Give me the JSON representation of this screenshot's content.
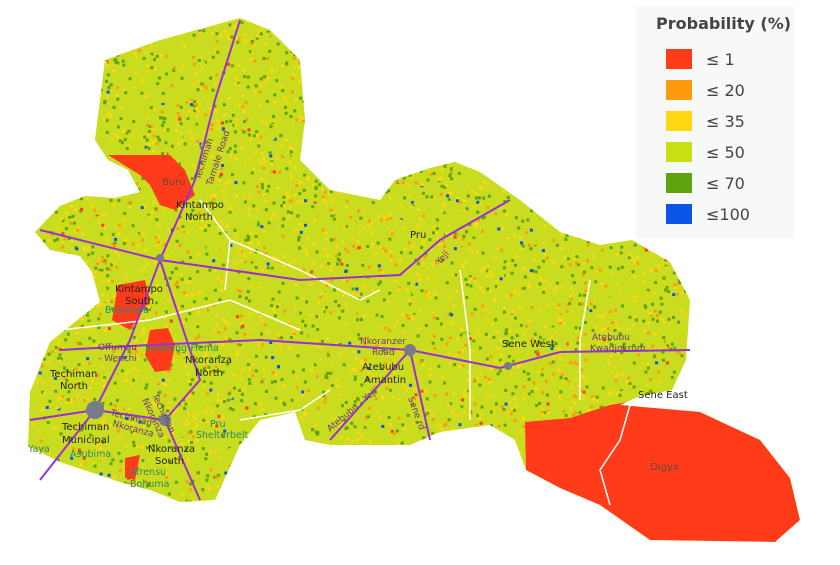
{
  "legend": {
    "title": "Probability (%)",
    "items": [
      {
        "label": "≤ 1",
        "color": "#ff3b1a"
      },
      {
        "label": "≤ 20",
        "color": "#ff9a0e"
      },
      {
        "label": "≤ 35",
        "color": "#fcd712"
      },
      {
        "label": "≤ 50",
        "color": "#c6e014"
      },
      {
        "label": "≤ 70",
        "color": "#5ea40e"
      },
      {
        "label": "≤100",
        "color": "#0a55e6"
      }
    ]
  },
  "districts": {
    "buru": "Buru",
    "kintampo_north": [
      "Kintampo",
      "North"
    ],
    "kintampo_south": [
      "Kintampo",
      "South"
    ],
    "bosomoa": "Bosomoa",
    "offuman": [
      "Offuman",
      "- Wenchi"
    ],
    "boabeng": "Boabeng-Fiema",
    "nkoranza_north": [
      "Nkoranza",
      "North"
    ],
    "techiman_north": [
      "Techiman",
      "North"
    ],
    "techiman_municipal": [
      "Techiman",
      "Municipal"
    ],
    "yaya": "Yaya",
    "asubima": "Asubima",
    "nkoranza_south": [
      "Nkoranza",
      "South"
    ],
    "pru_shelterbelt": [
      "Pru",
      "Shelterbelt"
    ],
    "afrensu": [
      "Afrensu",
      "Bohuma"
    ],
    "pru": "Pru",
    "nkoranzer_road": [
      "Nkoranzer",
      "Road"
    ],
    "atebubu_amantin": [
      "Atebubu",
      "Amantin"
    ],
    "sene_west": "Sene West",
    "atebubu_kwadjokrom": [
      "Atebubu",
      "Kwadjokrom"
    ],
    "sene_east": "Sene East",
    "digya": "Digya"
  },
  "roads": {
    "techiman_tamale": [
      "Techiman",
      "Tamale Road"
    ],
    "techiman_nkoranza": [
      "Techiman",
      "Nkoranza"
    ],
    "techiman_nkoranza_2": [
      "Techiman",
      "Nkoranza"
    ],
    "atebubu_yeji": "Atebubu - Yeji",
    "yeji": "Yeji",
    "sene_rd": "Sene rd"
  },
  "colors": {
    "road": "#9b2fd6",
    "boundary": "#ffffff",
    "town": "#7a7a8a"
  }
}
